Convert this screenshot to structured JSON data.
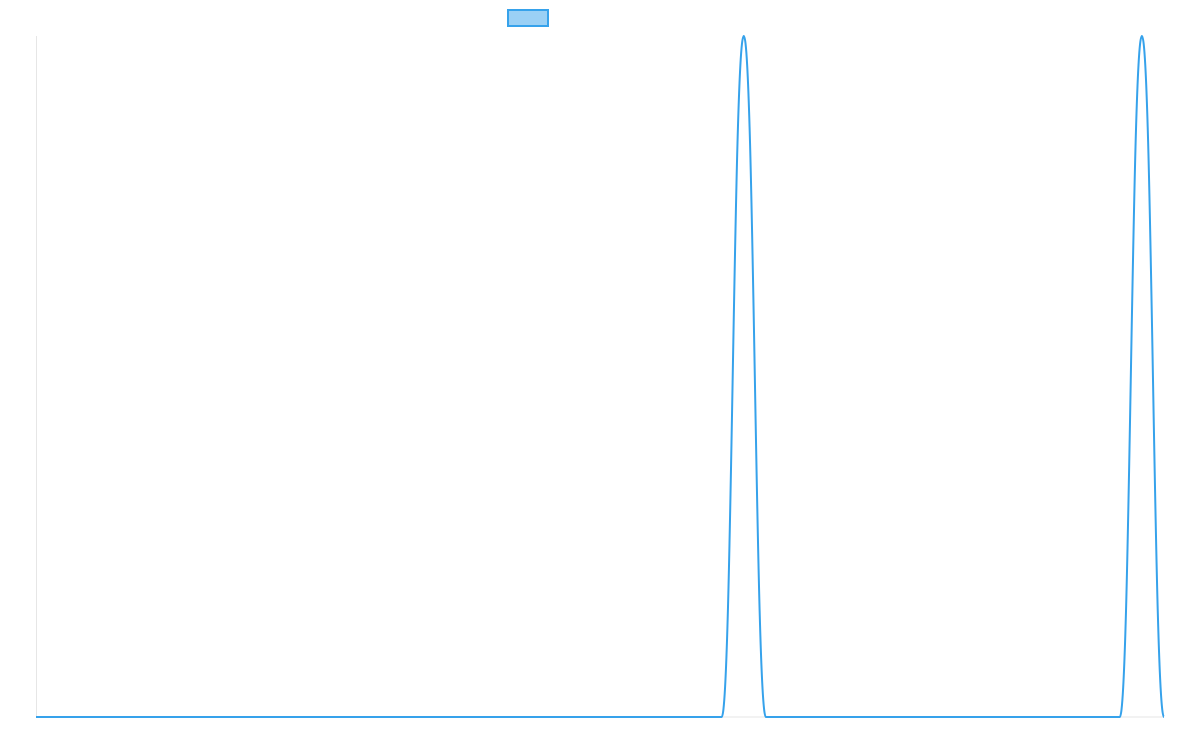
{
  "chart_data": {
    "type": "line",
    "title": "",
    "xlabel": "",
    "ylabel": "",
    "legend": {
      "placement": "top-center",
      "label": "",
      "swatch_fill": "#9ad0f5",
      "swatch_stroke": "#36a2eb"
    },
    "x_range": [
      0,
      51
    ],
    "y_range": [
      0,
      1
    ],
    "grid": false,
    "axis_color": "#e6e6e6",
    "series": [
      {
        "color": "#36a2eb",
        "x": [
          0,
          31,
          32,
          33,
          49,
          50,
          51
        ],
        "y": [
          0,
          0,
          1,
          0,
          0,
          1,
          0
        ]
      }
    ]
  }
}
